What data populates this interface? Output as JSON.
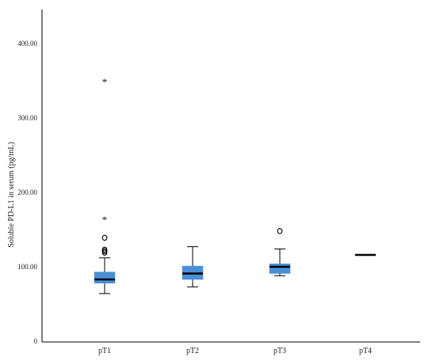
{
  "chart_data": {
    "type": "box",
    "title": "",
    "xlabel": "",
    "ylabel": "Soluble PD-L1 in serum (pg/mL)",
    "ylim": [
      0,
      440
    ],
    "y_ticks": [
      "0",
      "100.00",
      "200.00",
      "300.00",
      "400.00"
    ],
    "y_tick_values": [
      0,
      100,
      200,
      300,
      400
    ],
    "grid": false,
    "box_color": "#4a90d9",
    "categories": [
      "pT1",
      "pT2",
      "pT3",
      "pT4"
    ],
    "boxes": [
      {
        "category": "pT1",
        "min": 64,
        "q1": 78,
        "median": 83,
        "q3": 93,
        "max": 112,
        "outliers": [
          {
            "value": 139,
            "marker": "circle"
          },
          {
            "value": 123,
            "marker": "circle"
          },
          {
            "value": 121,
            "marker": "circle"
          },
          {
            "value": 119,
            "marker": "circle"
          },
          {
            "value": 164,
            "marker": "star"
          },
          {
            "value": 349,
            "marker": "star"
          }
        ]
      },
      {
        "category": "pT2",
        "min": 73,
        "q1": 83,
        "median": 91,
        "q3": 101,
        "max": 127,
        "outliers": []
      },
      {
        "category": "pT3",
        "min": 88,
        "q1": 91,
        "median": 100,
        "q3": 104,
        "max": 124,
        "outliers": [
          {
            "value": 148,
            "marker": "circle"
          }
        ]
      },
      {
        "category": "pT4",
        "min": 116,
        "q1": 116,
        "median": 116,
        "q3": 116,
        "max": 116,
        "outliers": []
      }
    ]
  }
}
